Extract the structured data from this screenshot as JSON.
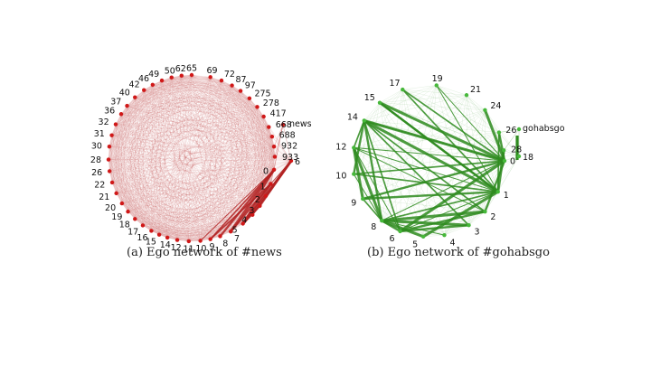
{
  "panels": [
    {
      "id": "news",
      "caption": "(a) Ego network of #news",
      "edge_color": "#b22222",
      "node_color": "#d01818",
      "ego_label": "news",
      "nodes": [
        "0",
        "1",
        "2",
        "3",
        "4",
        "5",
        "7",
        "8",
        "9",
        "10",
        "11",
        "12",
        "14",
        "15",
        "16",
        "17",
        "18",
        "19",
        "20",
        "21",
        "22",
        "26",
        "28",
        "30",
        "31",
        "32",
        "36",
        "37",
        "40",
        "42",
        "46",
        "49",
        "50",
        "62",
        "65",
        "69",
        "72",
        "87",
        "97",
        "275",
        "278",
        "417",
        "668",
        "688",
        "932",
        "933",
        "6"
      ],
      "heavy_edges": [
        [
          "0",
          "5"
        ],
        [
          "0",
          "7"
        ],
        [
          "0",
          "8"
        ],
        [
          "0",
          "9"
        ],
        [
          "0",
          "10"
        ],
        [
          "1",
          "5"
        ],
        [
          "1",
          "7"
        ],
        [
          "1",
          "9"
        ],
        [
          "6",
          "1"
        ],
        [
          "6",
          "2"
        ],
        [
          "6",
          "3"
        ],
        [
          "6",
          "4"
        ],
        [
          "6",
          "5"
        ],
        [
          "2",
          "5"
        ],
        [
          "3",
          "5"
        ]
      ]
    },
    {
      "id": "gohabsgo",
      "caption": "(b) Ego network of #gohabsgo",
      "edge_color": "#2e8b1e",
      "node_color": "#46b83a",
      "ego_label": "gohabsgo",
      "nodes": [
        "0",
        "1",
        "2",
        "3",
        "4",
        "5",
        "6",
        "8",
        "9",
        "10",
        "12",
        "14",
        "15",
        "17",
        "19",
        "21",
        "24",
        "26",
        "28",
        "18"
      ],
      "heavy_edges": [
        [
          "0",
          "8"
        ],
        [
          "0",
          "6"
        ],
        [
          "0",
          "9"
        ],
        [
          "0",
          "10"
        ],
        [
          "0",
          "12"
        ],
        [
          "0",
          "14"
        ],
        [
          "0",
          "2"
        ],
        [
          "1",
          "8"
        ],
        [
          "1",
          "6"
        ],
        [
          "1",
          "5"
        ],
        [
          "1",
          "9"
        ],
        [
          "1",
          "10"
        ],
        [
          "1",
          "12"
        ],
        [
          "1",
          "14"
        ],
        [
          "1",
          "15"
        ],
        [
          "1",
          "17"
        ],
        [
          "1",
          "19"
        ],
        [
          "2",
          "8"
        ],
        [
          "2",
          "6"
        ],
        [
          "2",
          "14"
        ],
        [
          "2",
          "12"
        ],
        [
          "3",
          "8"
        ],
        [
          "3",
          "6"
        ],
        [
          "3",
          "14"
        ],
        [
          "4",
          "8"
        ],
        [
          "5",
          "8"
        ],
        [
          "6",
          "8"
        ],
        [
          "8",
          "9"
        ],
        [
          "8",
          "10"
        ],
        [
          "8",
          "12"
        ],
        [
          "8",
          "14"
        ],
        [
          "6",
          "14"
        ],
        [
          "6",
          "12"
        ],
        [
          "9",
          "12"
        ],
        [
          "10",
          "14"
        ],
        [
          "12",
          "14"
        ],
        [
          "14",
          "0"
        ],
        [
          "15",
          "0"
        ],
        [
          "15",
          "1"
        ],
        [
          "17",
          "0"
        ],
        [
          "19",
          "0"
        ],
        [
          "24",
          "0"
        ],
        [
          "26",
          "0"
        ],
        [
          "26",
          "1"
        ],
        [
          "28",
          "0"
        ],
        [
          "28",
          "1"
        ]
      ]
    }
  ]
}
